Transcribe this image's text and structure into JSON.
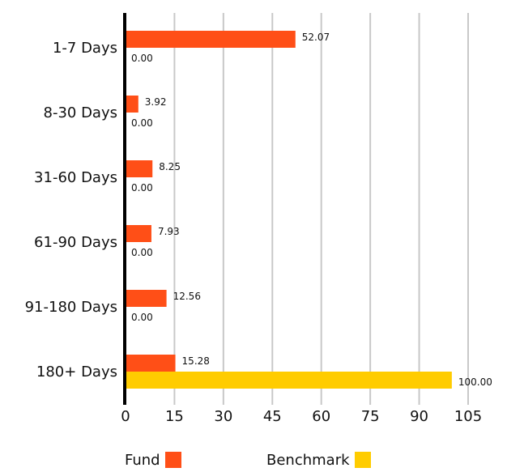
{
  "chart_data": {
    "type": "bar",
    "orientation": "horizontal",
    "categories": [
      "1-7 Days",
      "8-30 Days",
      "31-60 Days",
      "61-90 Days",
      "91-180 Days",
      "180+ Days"
    ],
    "series": [
      {
        "name": "Fund",
        "color": "#ff4f17",
        "values": [
          52.07,
          3.92,
          8.25,
          7.93,
          12.56,
          15.28
        ],
        "labels": [
          "52.07",
          "3.92",
          "8.25",
          "7.93",
          "12.56",
          "15.28"
        ]
      },
      {
        "name": "Benchmark",
        "color": "#ffcc00",
        "values": [
          0.0,
          0.0,
          0.0,
          0.0,
          0.0,
          100.0
        ],
        "labels": [
          "0.00",
          "0.00",
          "0.00",
          "0.00",
          "0.00",
          "100.00"
        ]
      }
    ],
    "xlim": [
      0,
      105
    ],
    "xticks": [
      "0",
      "15",
      "30",
      "45",
      "60",
      "75",
      "90",
      "105"
    ],
    "grid": true,
    "legend_position": "bottom",
    "title": "",
    "xlabel": "",
    "ylabel": ""
  }
}
